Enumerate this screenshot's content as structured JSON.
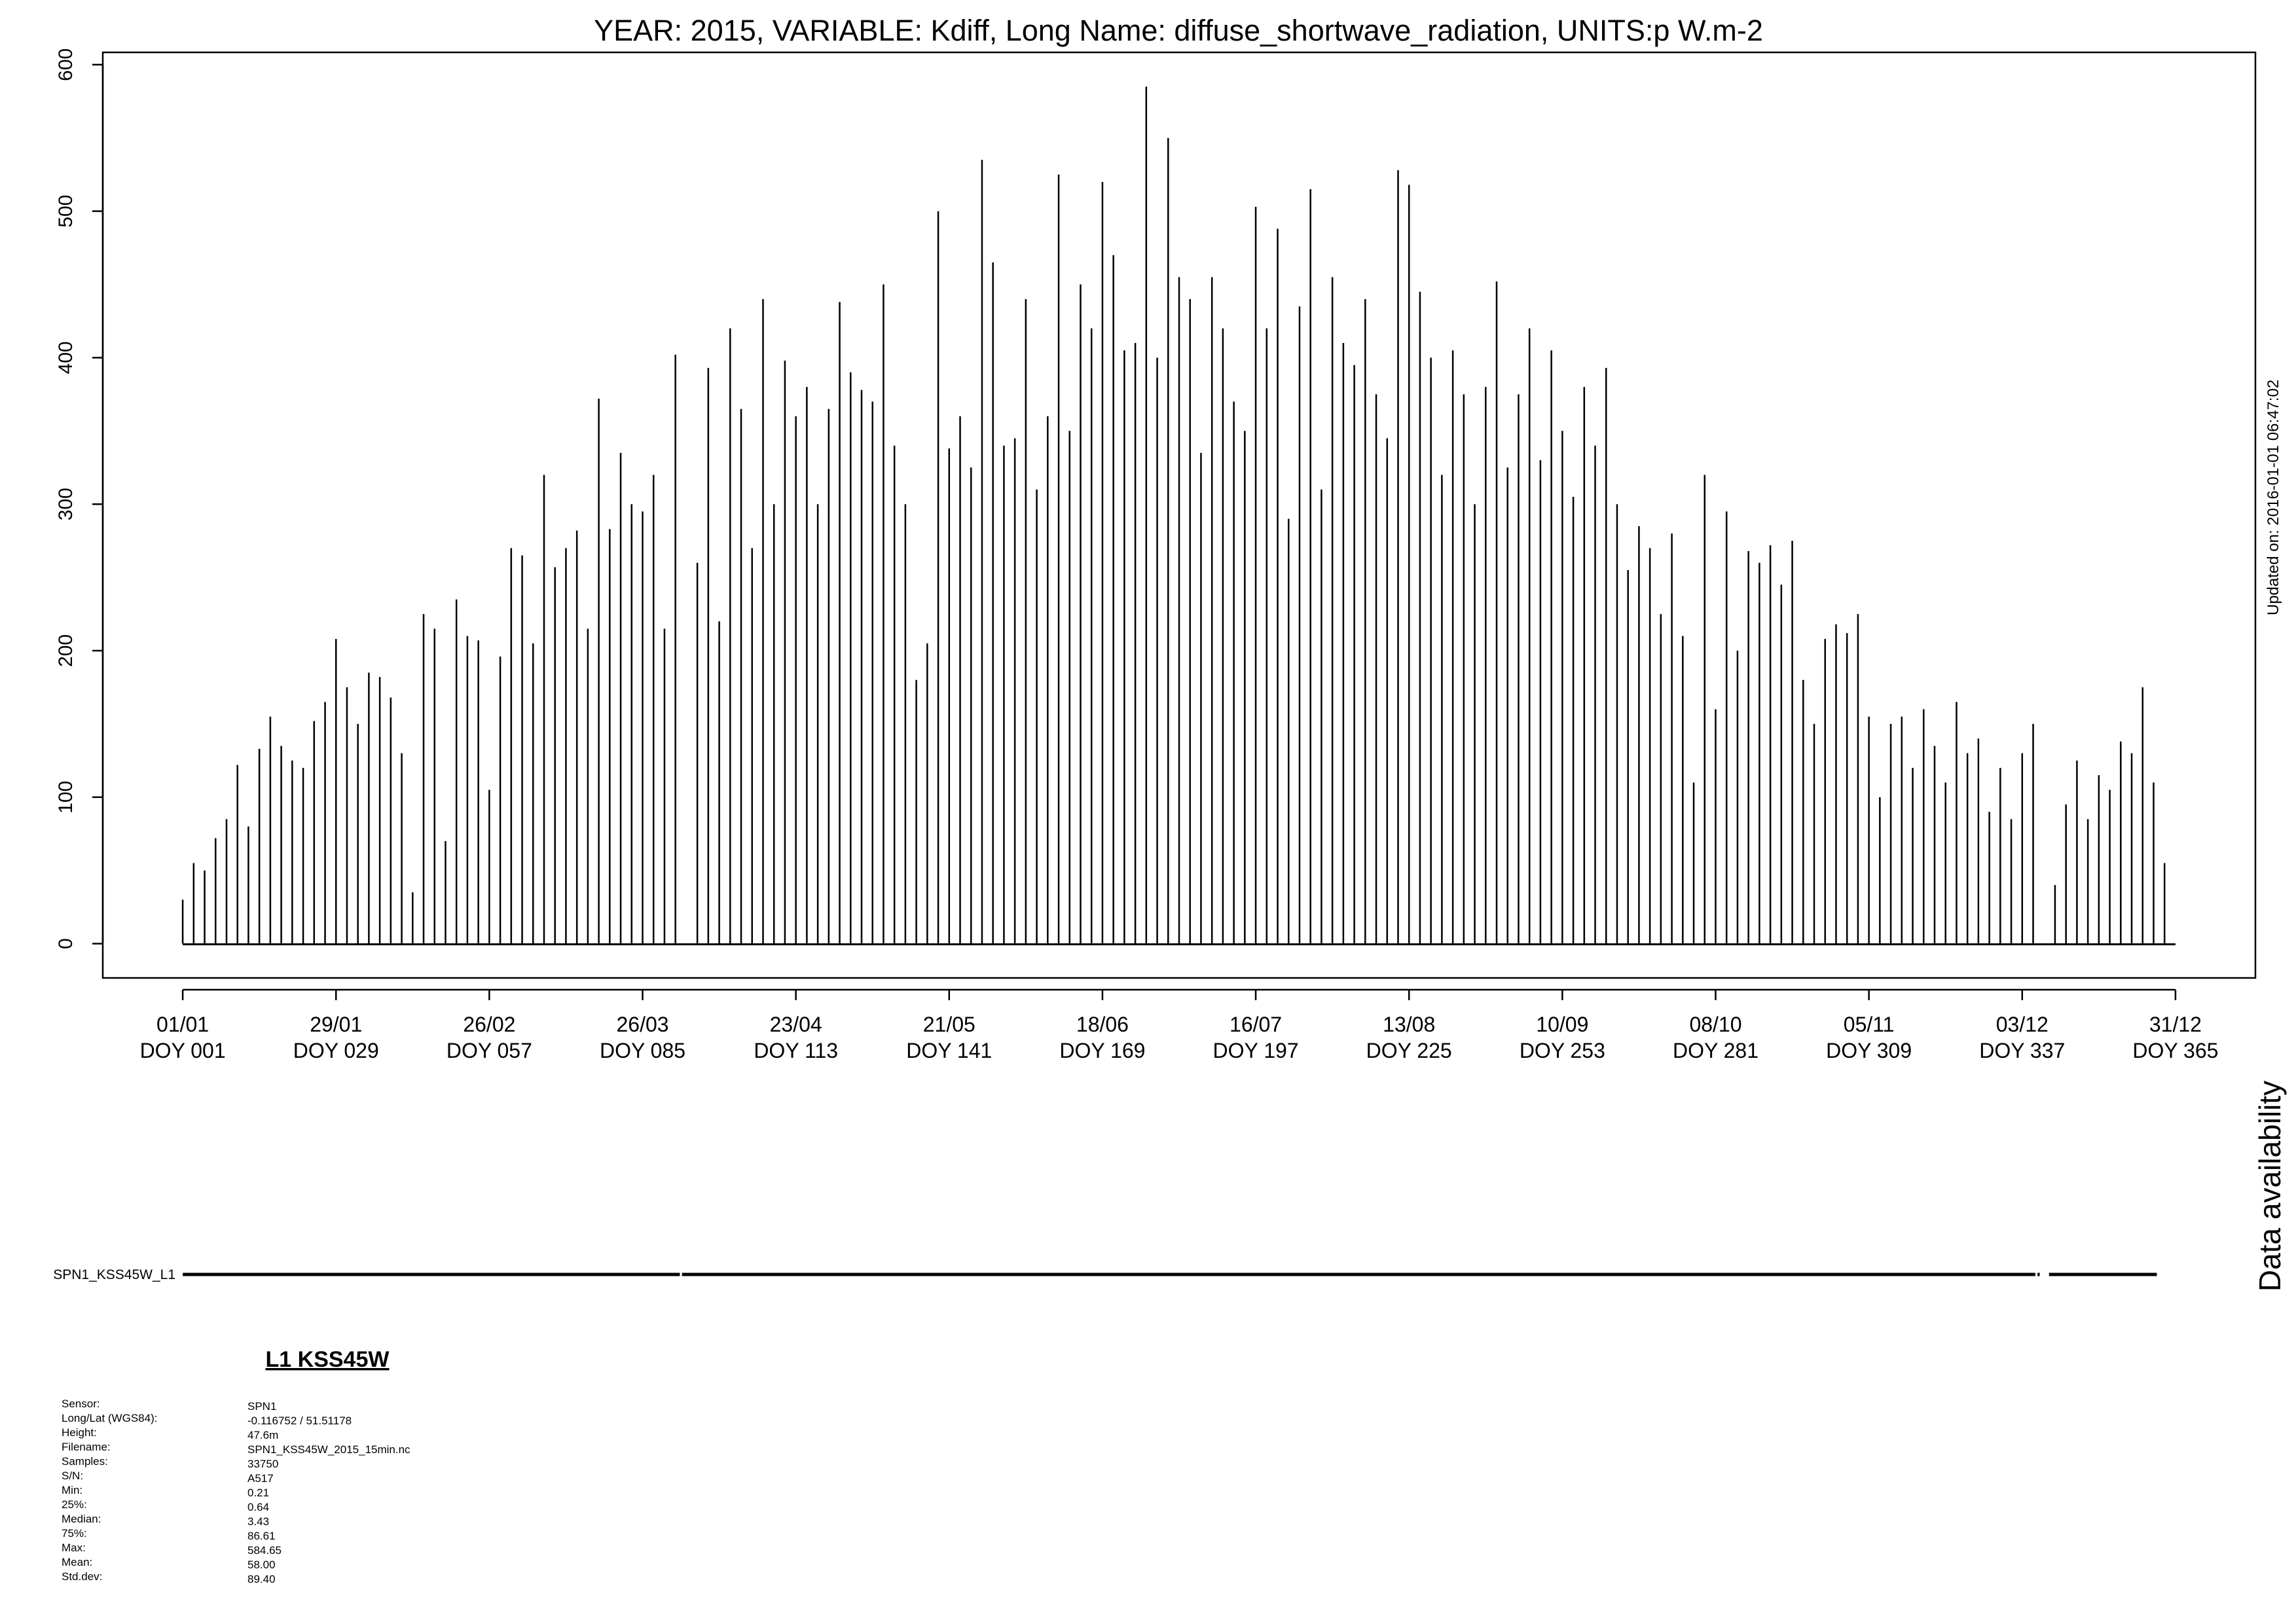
{
  "chart_data": {
    "type": "spike",
    "title": "YEAR: 2015, VARIABLE: Kdiff, Long Name: diffuse_shortwave_radiation, UNITS:p W.m-2",
    "color": "#000000",
    "xlim": [
      -13.6,
      379.6
    ],
    "ylim": [
      -23.4,
      608.4
    ],
    "xticks": [
      {
        "value": 1,
        "label": "01/01"
      },
      {
        "value": 29,
        "label": "29/01"
      },
      {
        "value": 57,
        "label": "26/02"
      },
      {
        "value": 85,
        "label": "26/03"
      },
      {
        "value": 113,
        "label": "23/04"
      },
      {
        "value": 141,
        "label": "21/05"
      },
      {
        "value": 169,
        "label": "18/06"
      },
      {
        "value": 197,
        "label": "16/07"
      },
      {
        "value": 225,
        "label": "13/08"
      },
      {
        "value": 253,
        "label": "10/09"
      },
      {
        "value": 281,
        "label": "08/10"
      },
      {
        "value": 309,
        "label": "05/11"
      },
      {
        "value": 337,
        "label": "03/12"
      },
      {
        "value": 365,
        "label": "31/12"
      }
    ],
    "xtick_sublabels": [
      "DOY 001",
      "DOY 029",
      "DOY 057",
      "DOY 085",
      "DOY 113",
      "DOY 141",
      "DOY 169",
      "DOY 197",
      "DOY 225",
      "DOY 253",
      "DOY 281",
      "DOY 309",
      "DOY 337",
      "DOY 365"
    ],
    "yticks": [
      0,
      100,
      200,
      300,
      400,
      500,
      600
    ],
    "x": [
      1,
      3,
      5,
      7,
      9,
      11,
      13,
      15,
      17,
      19,
      21,
      23,
      25,
      27,
      29,
      31,
      33,
      35,
      37,
      39,
      41,
      43,
      45,
      47,
      49,
      51,
      53,
      55,
      57,
      59,
      61,
      63,
      65,
      67,
      69,
      71,
      73,
      75,
      77,
      79,
      81,
      83,
      85,
      87,
      89,
      91,
      93,
      95,
      97,
      99,
      101,
      103,
      105,
      107,
      109,
      111,
      113,
      115,
      117,
      119,
      121,
      123,
      125,
      127,
      129,
      131,
      133,
      135,
      137,
      139,
      141,
      143,
      145,
      147,
      149,
      151,
      153,
      155,
      157,
      159,
      161,
      163,
      165,
      167,
      169,
      171,
      173,
      175,
      177,
      179,
      181,
      183,
      185,
      187,
      189,
      191,
      193,
      195,
      197,
      199,
      201,
      203,
      205,
      207,
      209,
      211,
      213,
      215,
      217,
      219,
      221,
      223,
      225,
      227,
      229,
      231,
      233,
      235,
      237,
      239,
      241,
      243,
      245,
      247,
      249,
      251,
      253,
      255,
      257,
      259,
      261,
      263,
      265,
      267,
      269,
      271,
      273,
      275,
      277,
      279,
      281,
      283,
      285,
      287,
      289,
      291,
      293,
      295,
      297,
      299,
      301,
      303,
      305,
      307,
      309,
      311,
      313,
      315,
      317,
      319,
      321,
      323,
      325,
      327,
      329,
      331,
      333,
      335,
      337,
      339,
      341,
      343,
      345,
      347,
      349,
      351,
      353,
      355,
      357,
      359,
      361,
      363,
      365
    ],
    "values": [
      30,
      55,
      50,
      72,
      85,
      122,
      80,
      133,
      155,
      135,
      125,
      120,
      152,
      165,
      208,
      175,
      150,
      185,
      182,
      168,
      130,
      35,
      225,
      215,
      70,
      235,
      210,
      207,
      105,
      196,
      270,
      265,
      205,
      320,
      257,
      270,
      282,
      215,
      372,
      283,
      335,
      300,
      295,
      320,
      215,
      402,
      null,
      260,
      393,
      220,
      420,
      365,
      270,
      440,
      300,
      398,
      360,
      380,
      300,
      365,
      438,
      390,
      378,
      370,
      450,
      340,
      300,
      180,
      205,
      500,
      338,
      360,
      325,
      535,
      465,
      340,
      345,
      440,
      310,
      360,
      525,
      350,
      450,
      420,
      520,
      470,
      405,
      410,
      585,
      400,
      550,
      455,
      440,
      335,
      455,
      420,
      370,
      350,
      503,
      420,
      488,
      290,
      435,
      515,
      310,
      455,
      410,
      395,
      440,
      375,
      345,
      528,
      518,
      445,
      400,
      320,
      405,
      375,
      300,
      380,
      452,
      325,
      375,
      420,
      330,
      405,
      350,
      305,
      380,
      340,
      393,
      300,
      255,
      285,
      270,
      225,
      280,
      210,
      110,
      320,
      160,
      295,
      200,
      268,
      260,
      272,
      245,
      275,
      180,
      150,
      208,
      218,
      212,
      225,
      155,
      100,
      150,
      155,
      120,
      160,
      135,
      110,
      165,
      130,
      140,
      90,
      120,
      85,
      130,
      150,
      null,
      40,
      95,
      125,
      85,
      115,
      105,
      138,
      130,
      175,
      110,
      55,
      null
    ],
    "updated": "Updated on: 2016-01-01 06:47:02"
  },
  "availability": {
    "title": "Data availability",
    "label": "SPN1_KSS45W_L1",
    "segments": [
      [
        1,
        91.8
      ],
      [
        92.2,
        339.4
      ],
      [
        339.8,
        340.2
      ],
      [
        341.9,
        361.6
      ]
    ]
  },
  "info": {
    "title": "L1 KSS45W",
    "rows": [
      [
        "Sensor:",
        "SPN1"
      ],
      [
        "Long/Lat (WGS84):",
        "-0.116752 / 51.51178"
      ],
      [
        "Height:",
        "47.6m"
      ],
      [
        "Filename:",
        "SPN1_KSS45W_2015_15min.nc"
      ],
      [
        "Samples:",
        "33750"
      ],
      [
        "S/N:",
        "A517"
      ],
      [
        "Min:",
        "0.21"
      ],
      [
        "25%:",
        "0.64"
      ],
      [
        "Median:",
        "3.43"
      ],
      [
        "75%:",
        "86.61"
      ],
      [
        "Max:",
        "584.65"
      ],
      [
        "Mean:",
        "58.00"
      ],
      [
        "Std.dev:",
        "89.40"
      ]
    ]
  }
}
